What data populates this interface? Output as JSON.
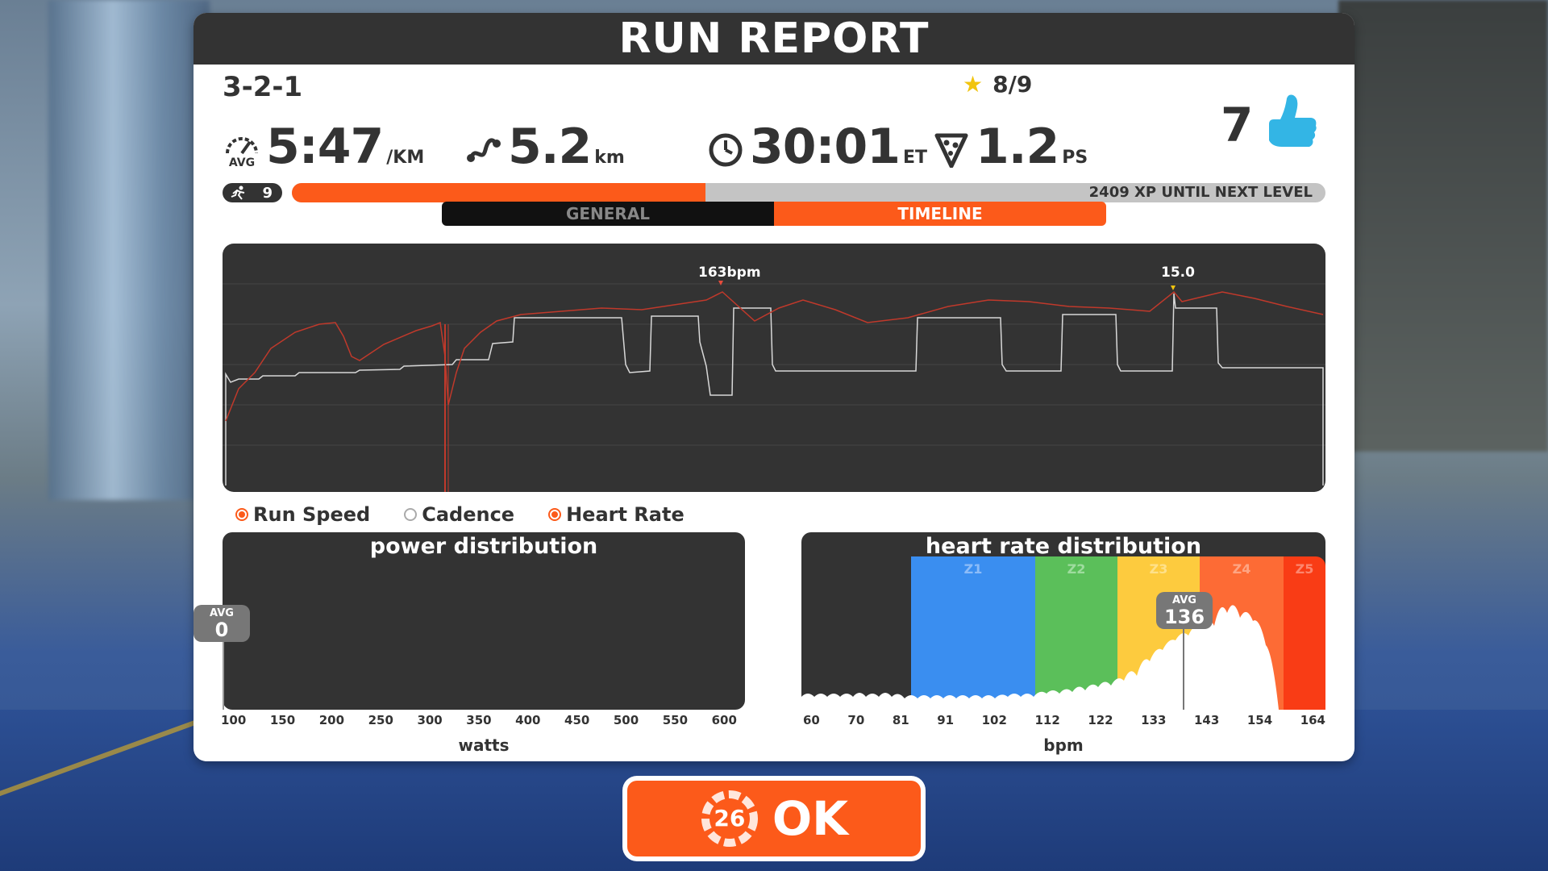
{
  "title": "RUN REPORT",
  "route_name": "3-2-1",
  "stars": "8/9",
  "stats": {
    "pace_value": "5:47",
    "pace_unit": "/KM",
    "pace_icon_label": "AVG",
    "distance_value": "5.2",
    "distance_unit": "km",
    "time_value": "30:01",
    "time_unit": "ET",
    "pizza_value": "1.2",
    "pizza_unit": "PS"
  },
  "likes": "7",
  "level": {
    "number": "9",
    "xp_text": "2409 XP UNTIL NEXT LEVEL",
    "progress_fraction": 0.4
  },
  "tabs": [
    {
      "label": "GENERAL",
      "active": false
    },
    {
      "label": "TIMELINE",
      "active": true
    }
  ],
  "timeline": {
    "hr_peak_label": "163bpm",
    "speed_peak_label": "15.0",
    "colors": {
      "heart_rate": "#c0392b",
      "speed": "#d8d8d8",
      "hr_marker": "#e74c3c",
      "speed_marker": "#f1c40f"
    }
  },
  "legend": [
    {
      "label": "Run Speed",
      "checked": true
    },
    {
      "label": "Cadence",
      "checked": false
    },
    {
      "label": "Heart Rate",
      "checked": true
    }
  ],
  "power_distribution": {
    "title": "power distribution",
    "avg_label": "AVG",
    "avg_value": "0",
    "ticks": [
      "100",
      "150",
      "200",
      "250",
      "300",
      "350",
      "400",
      "450",
      "500",
      "550",
      "600"
    ],
    "unit": "watts"
  },
  "hr_distribution": {
    "title": "heart rate distribution",
    "avg_label": "AVG",
    "avg_value": "136",
    "ticks": [
      "60",
      "70",
      "81",
      "91",
      "102",
      "112",
      "122",
      "133",
      "143",
      "154",
      "164"
    ],
    "unit": "bpm",
    "zones": [
      {
        "label": "Z1",
        "color": "#3a8ef0"
      },
      {
        "label": "Z2",
        "color": "#5bbf5a"
      },
      {
        "label": "Z3",
        "color": "#fdcb3e"
      },
      {
        "label": "Z4",
        "color": "#fd6b35"
      },
      {
        "label": "Z5",
        "color": "#f93c15"
      }
    ]
  },
  "ok_button": {
    "label": "OK",
    "countdown": "26"
  },
  "accent_color": "#fc5a1a"
}
